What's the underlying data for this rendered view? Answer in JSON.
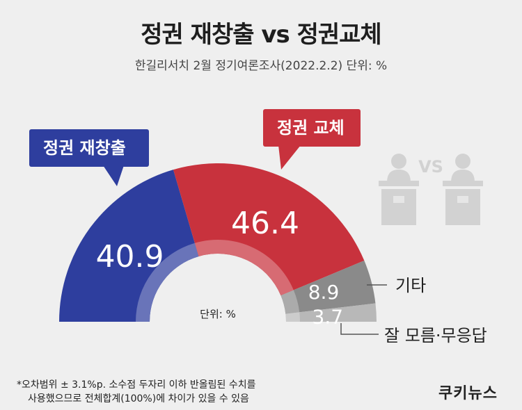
{
  "header": {
    "title": "정권 재창출 vs 정권교체",
    "subtitle": "한길리서치 2월 정기여론조사(2022.2.2) 단위: %"
  },
  "callouts": {
    "keep": "정권 재창출",
    "change": "정권 교체"
  },
  "center_unit": "단위: %",
  "icon_vs": "VS",
  "footnote": {
    "line1": "*오차범위 ± 3.1%p. 소수점 두자리 이하 반올림된 수치를",
    "line2": "사용했으므로 전체합계(100%)에 차이가 있을 수 있음"
  },
  "logo": "쿠키뉴스",
  "colors": {
    "blue": "#2e3e9e",
    "red": "#c8323d",
    "gray": "#8a8a8a",
    "lightgray": "#b8b8b8",
    "background": "#efefef"
  },
  "chart_data": {
    "type": "pie",
    "subtype": "semicircle-donut",
    "unit": "%",
    "slices": [
      {
        "label": "정권 재창출",
        "value": 40.9,
        "value_label": "40.9",
        "color": "#2e3e9e"
      },
      {
        "label": "정권 교체",
        "value": 46.4,
        "value_label": "46.4",
        "color": "#c8323d"
      },
      {
        "label": "기타",
        "value": 8.9,
        "value_label": "8.9",
        "color": "#8a8a8a"
      },
      {
        "label": "잘 모름·무응답",
        "value": 3.7,
        "value_label": "3.7",
        "color": "#b8b8b8"
      }
    ]
  }
}
